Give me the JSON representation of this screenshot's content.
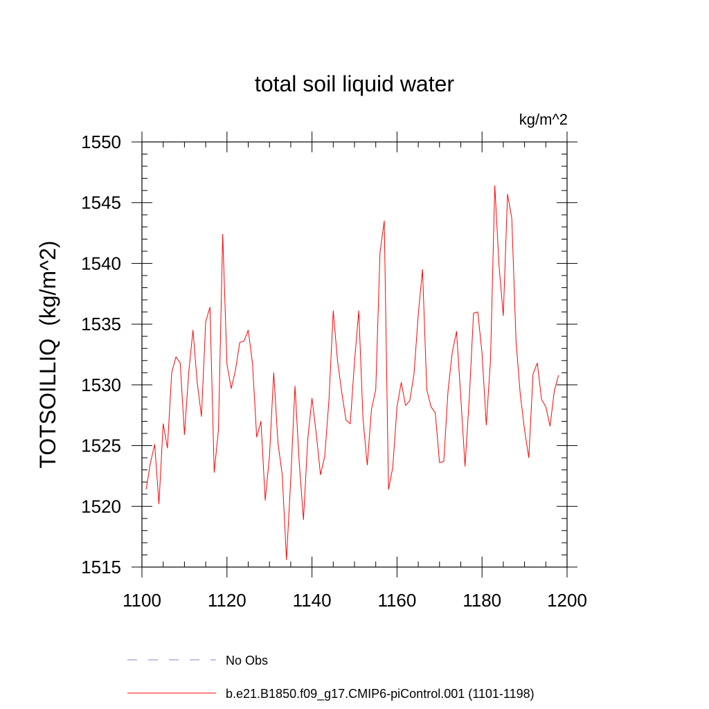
{
  "chart_data": {
    "type": "line",
    "title": "total soil liquid water",
    "units_label": "kg/m^2",
    "ylabel": "TOTSOILLIQ  (kg/m^2)",
    "xlabel": "",
    "xlim": [
      1100,
      1200
    ],
    "ylim": [
      1515,
      1550
    ],
    "x_ticks": [
      1100,
      1120,
      1140,
      1160,
      1180,
      1200
    ],
    "y_ticks": [
      1515,
      1520,
      1525,
      1530,
      1535,
      1540,
      1545,
      1550
    ],
    "x_minor_step": 5,
    "y_minor_step": 1,
    "grid": false,
    "legend_position": "bottom",
    "legend": [
      {
        "label": "No Obs",
        "style": "dashed",
        "color": "#8a7fd0"
      },
      {
        "label": "b.e21.B1850.f09_g17.CMIP6-piControl.001 (1101-1198)",
        "style": "solid",
        "color": "#ff0000"
      }
    ],
    "series": [
      {
        "name": "b.e21.B1850.f09_g17.CMIP6-piControl.001 (1101-1198)",
        "color": "#ff0000",
        "x_start": 1101,
        "x_step": 1,
        "values": [
          1521.4,
          1523.6,
          1525.1,
          1520.2,
          1526.8,
          1524.8,
          1531.0,
          1532.3,
          1531.8,
          1525.9,
          1531.0,
          1534.5,
          1530.2,
          1527.4,
          1535.2,
          1536.4,
          1522.8,
          1526.3,
          1542.4,
          1531.7,
          1529.7,
          1531.2,
          1533.5,
          1533.6,
          1534.5,
          1531.8,
          1525.7,
          1527.0,
          1520.5,
          1524.1,
          1531.0,
          1525.2,
          1522.6,
          1515.6,
          1522.2,
          1529.9,
          1523.6,
          1518.9,
          1525.5,
          1528.9,
          1526.0,
          1522.6,
          1524.1,
          1528.8,
          1536.1,
          1532.0,
          1529.4,
          1527.1,
          1526.8,
          1531.9,
          1536.1,
          1527.2,
          1523.4,
          1528.0,
          1529.6,
          1540.9,
          1543.5,
          1521.4,
          1523.2,
          1528.2,
          1530.2,
          1528.3,
          1528.7,
          1530.9,
          1535.8,
          1539.5,
          1529.6,
          1528.2,
          1527.7,
          1523.6,
          1523.7,
          1529.5,
          1532.7,
          1534.4,
          1529.0,
          1523.3,
          1528.9,
          1535.9,
          1536.0,
          1532.6,
          1526.7,
          1532.1,
          1546.4,
          1539.8,
          1535.7,
          1545.7,
          1543.7,
          1533.6,
          1529.2,
          1526.3,
          1524.0,
          1530.9,
          1531.8,
          1528.8,
          1528.2,
          1526.6,
          1529.5,
          1530.8
        ]
      }
    ]
  }
}
